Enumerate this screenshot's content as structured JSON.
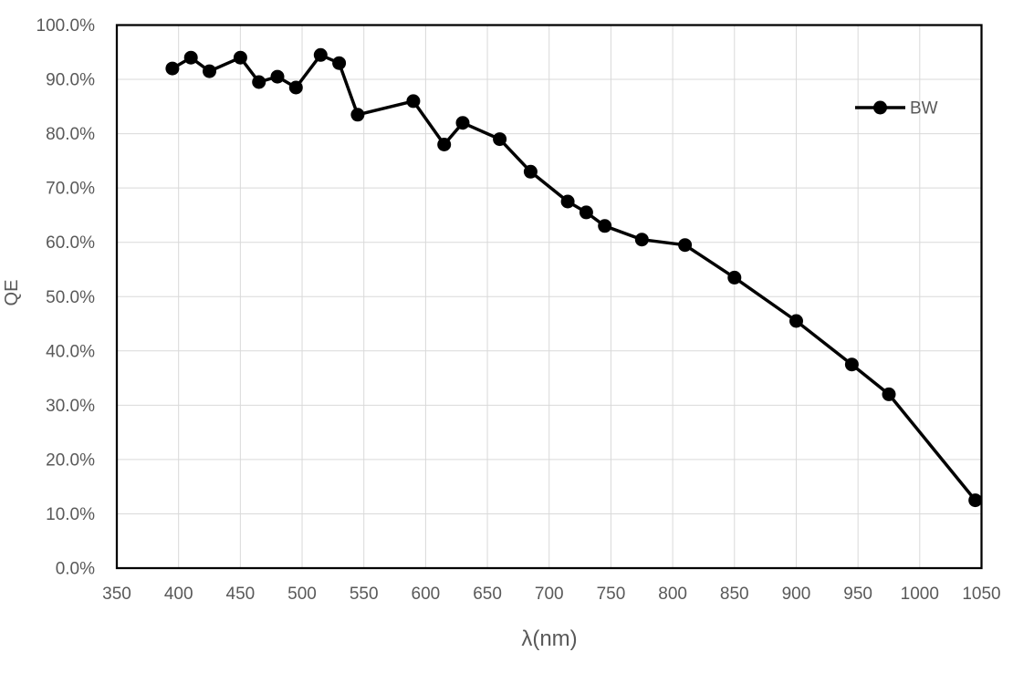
{
  "chart_data": {
    "type": "line",
    "title": "",
    "xlabel": "λ(nm)",
    "ylabel": "QE",
    "grid": true,
    "legend": {
      "position": "inside-top-right",
      "entries": [
        "BW"
      ]
    },
    "x_range": [
      350,
      1050
    ],
    "y_range": [
      0,
      100
    ],
    "x_ticks": [
      350,
      400,
      450,
      500,
      550,
      600,
      650,
      700,
      750,
      800,
      850,
      900,
      950,
      1000,
      1050
    ],
    "y_ticks": [
      0,
      10,
      20,
      30,
      40,
      50,
      60,
      70,
      80,
      90,
      100
    ],
    "y_tick_labels": [
      "0.0%",
      "10.0%",
      "20.0%",
      "30.0%",
      "40.0%",
      "50.0%",
      "60.0%",
      "70.0%",
      "80.0%",
      "90.0%",
      "100.0%"
    ],
    "series": [
      {
        "name": "BW",
        "color": "#000000",
        "marker": "circle",
        "x": [
          395,
          410,
          425,
          450,
          465,
          480,
          495,
          515,
          530,
          545,
          590,
          615,
          630,
          660,
          685,
          715,
          730,
          745,
          775,
          810,
          850,
          900,
          945,
          975,
          1045
        ],
        "y": [
          92.0,
          94.0,
          91.5,
          94.0,
          89.5,
          90.5,
          88.5,
          94.5,
          93.0,
          83.5,
          86.0,
          78.0,
          82.0,
          79.0,
          73.0,
          67.5,
          65.5,
          63.0,
          60.5,
          59.5,
          53.5,
          45.5,
          37.5,
          32.0,
          12.5
        ]
      }
    ]
  },
  "colors": {
    "text": "#595959",
    "grid": "#d9d9d9",
    "axis_border": "#000000",
    "series": "#000000",
    "background": "#ffffff"
  }
}
